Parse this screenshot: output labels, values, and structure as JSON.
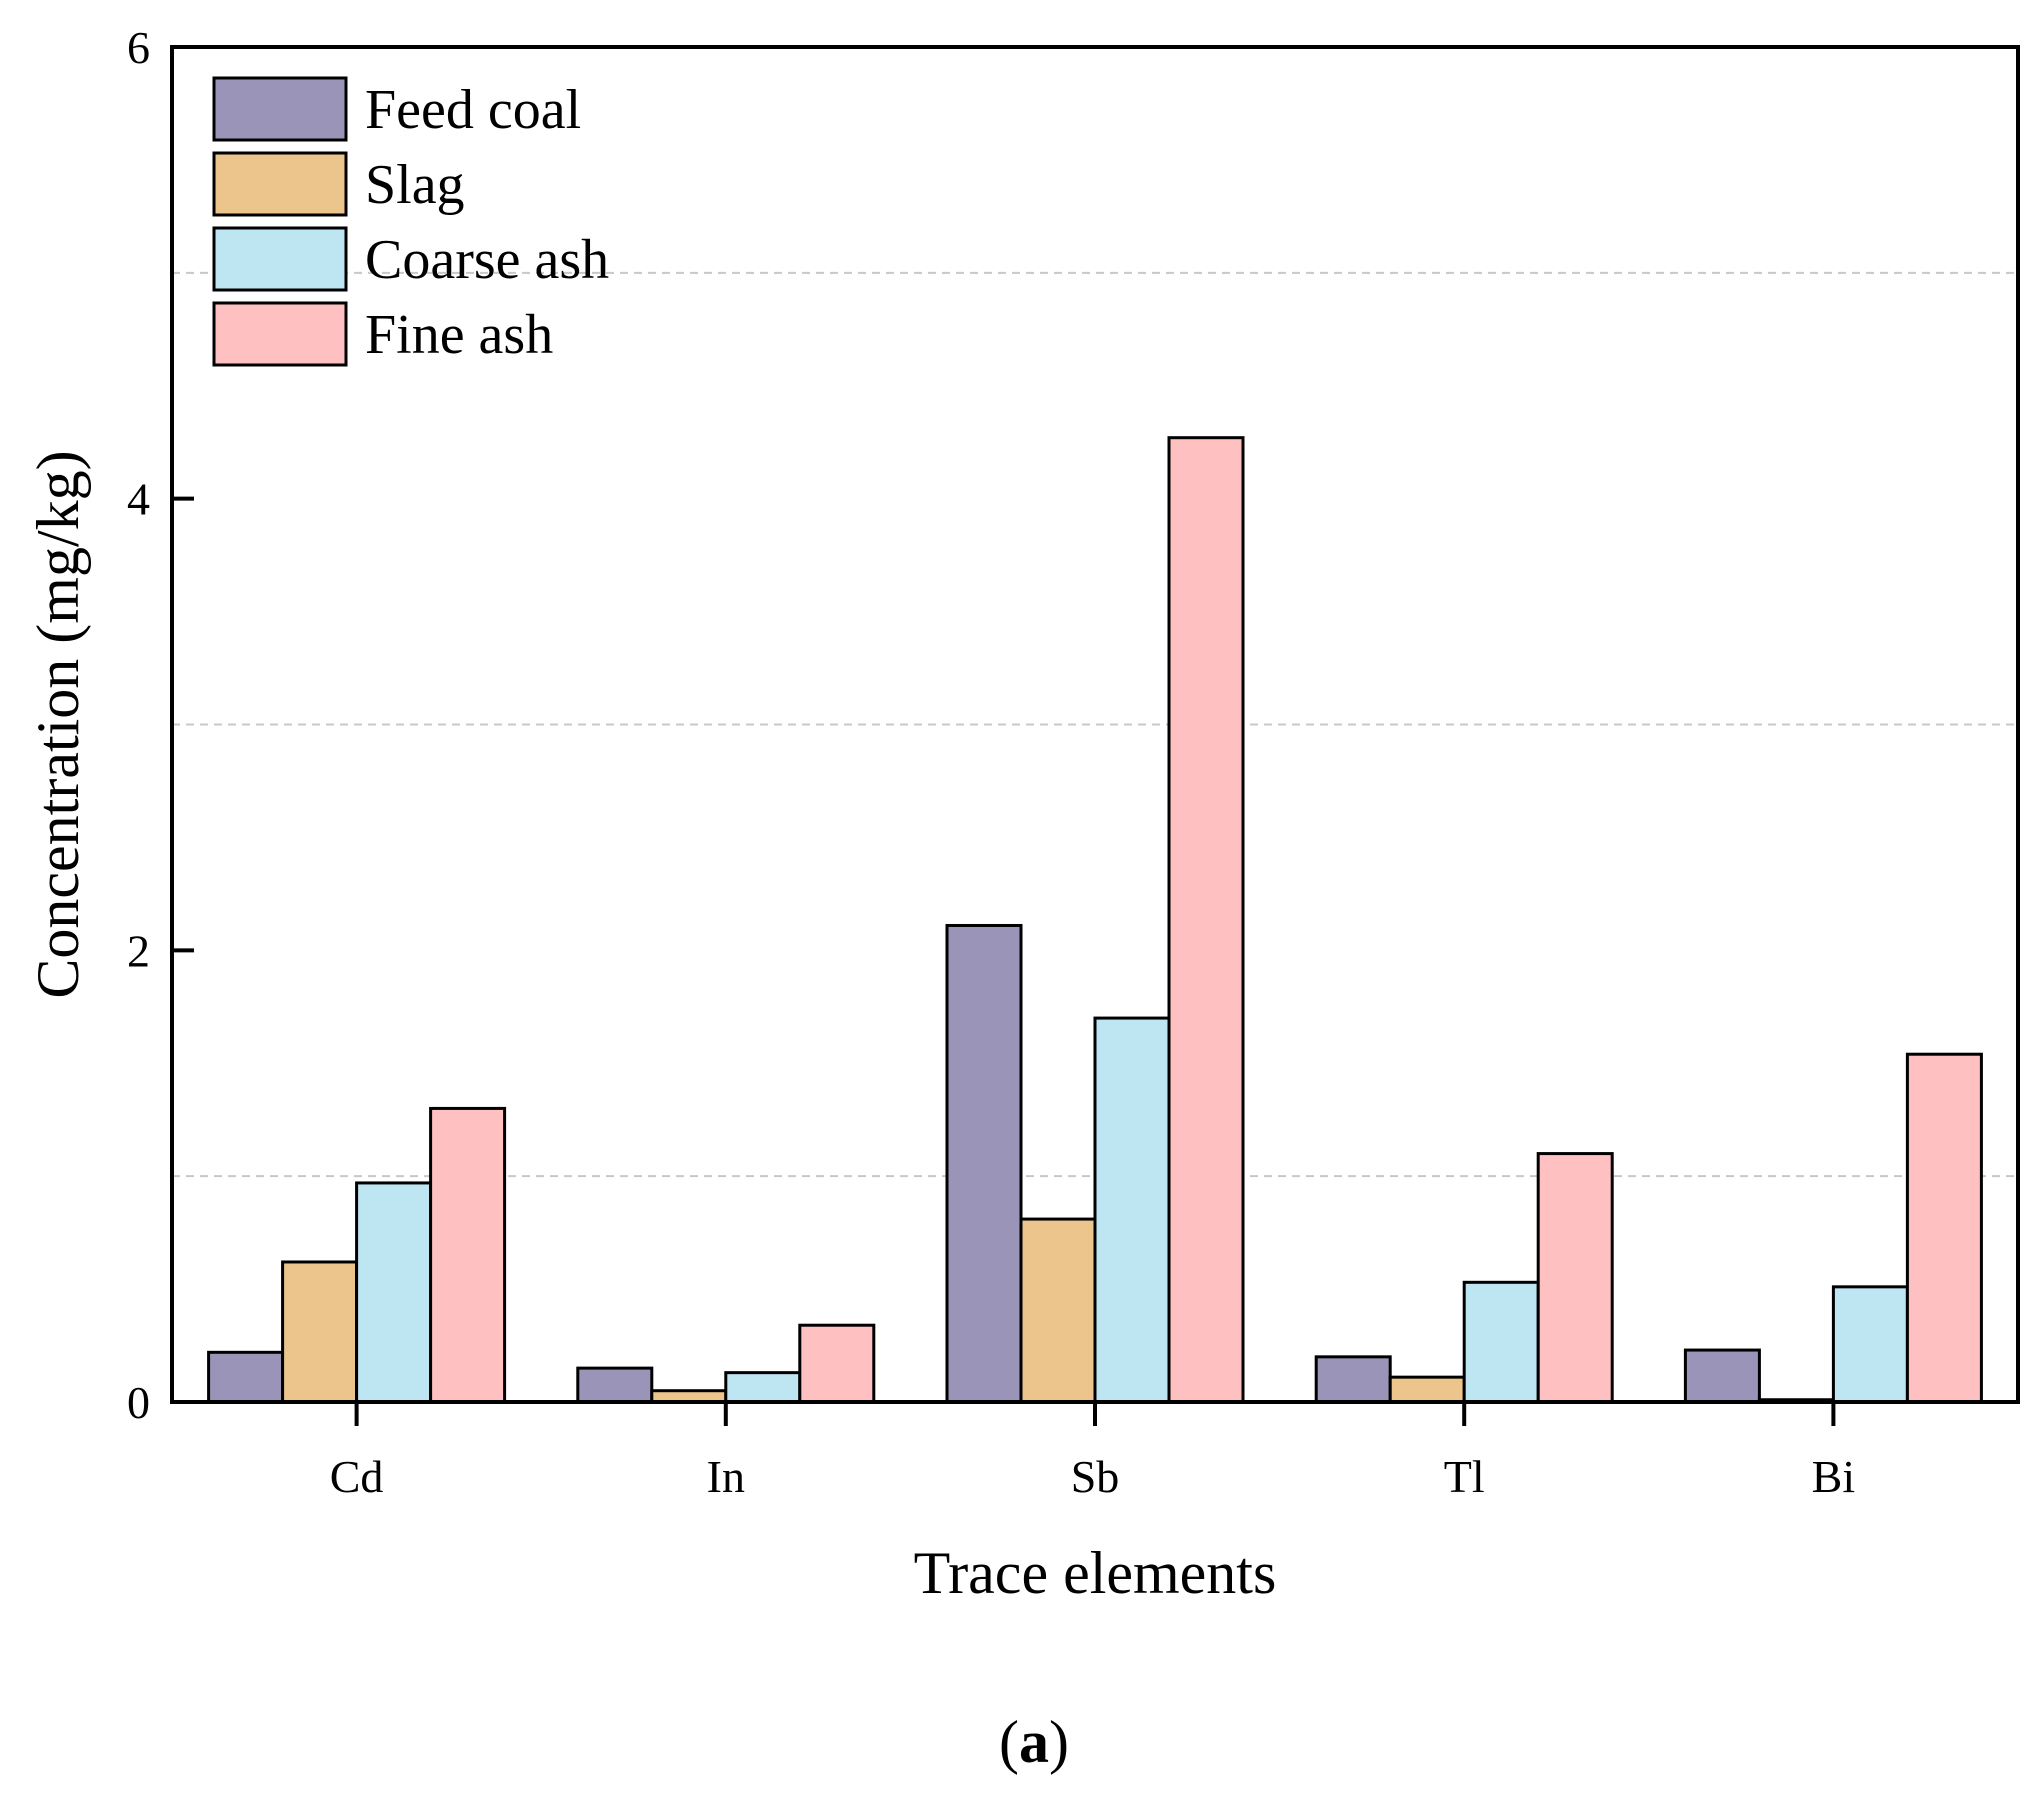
{
  "chart_data": {
    "type": "bar",
    "title": "",
    "xlabel": "Trace elements",
    "ylabel": "Concentration (mg/kg)",
    "ylim": [
      0,
      6
    ],
    "yticks": [
      "0",
      "2",
      "4",
      "6"
    ],
    "grid": "dashed horizontal",
    "legend_position": "top-left",
    "categories": [
      "Cd",
      "In",
      "Sb",
      "Tl",
      "Bi"
    ],
    "series": [
      {
        "name": "Feed coal",
        "color": "#9a94b8",
        "values": [
          0.22,
          0.15,
          2.11,
          0.2,
          0.23
        ]
      },
      {
        "name": "Slag",
        "color": "#ecc58c",
        "values": [
          0.62,
          0.05,
          0.81,
          0.11,
          0.01
        ]
      },
      {
        "name": "Coarse ash",
        "color": "#bde5f2",
        "values": [
          0.97,
          0.13,
          1.7,
          0.53,
          0.51
        ]
      },
      {
        "name": "Fine ash",
        "color": "#fec0c0",
        "values": [
          1.3,
          0.34,
          4.27,
          1.1,
          1.54
        ]
      }
    ],
    "panel_label": "(a)"
  }
}
